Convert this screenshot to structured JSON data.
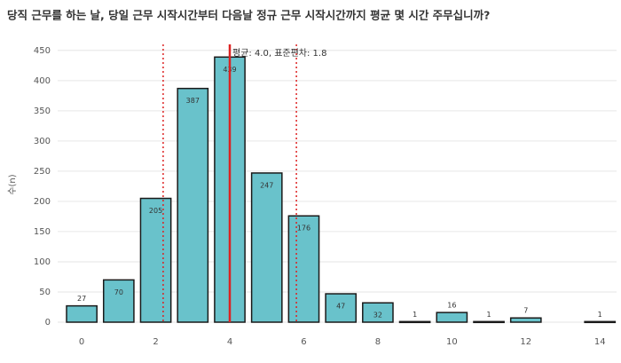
{
  "chart_data": {
    "type": "bar",
    "title": "당직 근무를 하는 날, 당일 근무 시작시간부터 다음날 정규 근무 시작시간까지 평균 몇 시간 주무십니까?",
    "y_label": "수(n)",
    "annotation": "평균: 4.0, 표준편차: 1.8",
    "x": [
      0,
      1,
      2,
      3,
      4,
      5,
      6,
      7,
      8,
      9,
      10,
      11,
      12,
      14
    ],
    "values": [
      27,
      70,
      205,
      387,
      439,
      247,
      176,
      47,
      32,
      1,
      16,
      1,
      7,
      1
    ],
    "color": "#69c2cb",
    "xlim": [
      -0.65,
      14.45
    ],
    "xticks": [
      0,
      2,
      4,
      6,
      8,
      10,
      12,
      14
    ],
    "ylim": [
      0,
      460
    ],
    "yticks": [
      0,
      50,
      100,
      150,
      200,
      250,
      300,
      350,
      400,
      450
    ],
    "grid": true,
    "mean_line": 4.0,
    "sd_lines": [
      2.2,
      5.8
    ]
  }
}
